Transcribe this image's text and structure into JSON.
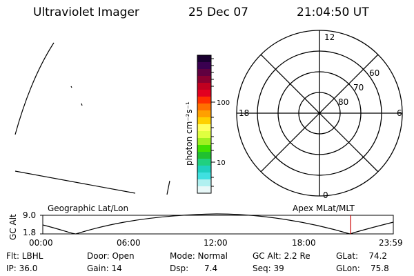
{
  "header": {
    "title": "Ultraviolet Imager",
    "date": "25 Dec 07",
    "time": "21:04:50 UT"
  },
  "colorbar": {
    "label": "photon cm⁻²s⁻¹",
    "tick_high": "100",
    "tick_low": "10",
    "colors": [
      "#1a0030",
      "#3a0050",
      "#600040",
      "#8a0030",
      "#c00020",
      "#e20020",
      "#ff3000",
      "#ff7000",
      "#ffa000",
      "#ffd000",
      "#ffff60",
      "#e0ff40",
      "#a0f020",
      "#40e000",
      "#20c030",
      "#20d080",
      "#20d0c0",
      "#40e0e0",
      "#b0f0f0",
      "#e8f8f8"
    ]
  },
  "polar_plot": {
    "mlt_top": "12",
    "mlt_left": "18",
    "mlt_right": "6",
    "mlt_bottom": "0",
    "lat_outer": "60",
    "lat_mid": "70",
    "lat_inner": "80"
  },
  "timeline": {
    "left_label": "Geographic Lat/Lon",
    "right_label": "Apex MLat/MLT",
    "y_axis_label": "GC Alt",
    "y_max": "9.0",
    "y_min": "1.8",
    "x_ticks": [
      "00:00",
      "06:00",
      "12:00",
      "18:00",
      "23:59"
    ],
    "marker_time_hours": 21.08,
    "accent_color": "#cc0000"
  },
  "info": {
    "flt": "Flt: LBHL",
    "ip": "IP: 36.0",
    "door": "Door: Open",
    "gain": "Gain: 14",
    "mode": "Mode: Normal",
    "dsp": "Dsp:      7.4",
    "gc_alt": "GC Alt: 2.2 Re",
    "seq": "Seq: 39",
    "glat": "GLat:    74.2",
    "glon": "GLon:    75.8"
  }
}
